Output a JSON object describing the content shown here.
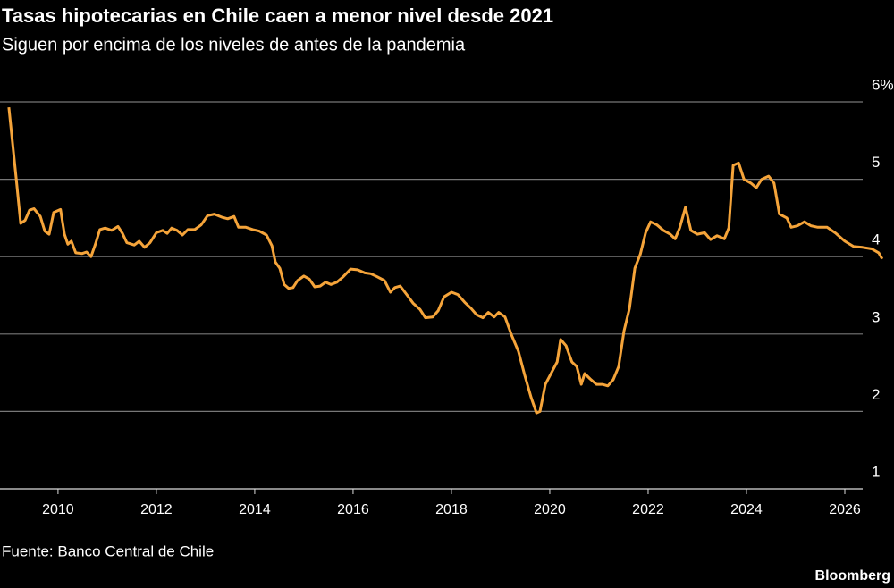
{
  "chart_data": {
    "type": "line",
    "title": "Tasas hipotecarias en Chile caen a menor nivel desde 2021",
    "subtitle": "Siguen por encima de los niveles de antes de la pandemia",
    "source": "Fuente: Banco Central de Chile",
    "brand": "Bloomberg",
    "color": "#f5a43a",
    "grid": true,
    "xlim": [
      2008.82,
      2027.0
    ],
    "xticks": [
      2010,
      2012,
      2014,
      2016,
      2018,
      2020,
      2022,
      2024,
      2026
    ],
    "ylim": [
      1,
      6
    ],
    "yticks": [
      1,
      2,
      3,
      4,
      5,
      {
        "value": 6,
        "label": "6%"
      }
    ],
    "x": [
      2009.0,
      2009.15,
      2009.24,
      2009.33,
      2009.42,
      2009.51,
      2009.64,
      2009.73,
      2009.82,
      2009.91,
      2010.05,
      2010.13,
      2010.2,
      2010.27,
      2010.36,
      2010.49,
      2010.58,
      2010.67,
      2010.76,
      2010.85,
      2010.96,
      2011.09,
      2011.22,
      2011.31,
      2011.4,
      2011.55,
      2011.65,
      2011.76,
      2011.87,
      2012.0,
      2012.13,
      2012.22,
      2012.31,
      2012.42,
      2012.53,
      2012.64,
      2012.78,
      2012.91,
      2013.04,
      2013.18,
      2013.33,
      2013.45,
      2013.58,
      2013.67,
      2013.82,
      2013.96,
      2014.09,
      2014.24,
      2014.35,
      2014.42,
      2014.51,
      2014.6,
      2014.69,
      2014.78,
      2014.87,
      2015.0,
      2015.11,
      2015.22,
      2015.33,
      2015.44,
      2015.55,
      2015.67,
      2015.8,
      2015.95,
      2016.09,
      2016.24,
      2016.36,
      2016.49,
      2016.64,
      2016.76,
      2016.85,
      2016.96,
      2017.09,
      2017.22,
      2017.36,
      2017.47,
      2017.62,
      2017.73,
      2017.85,
      2018.0,
      2018.13,
      2018.27,
      2018.4,
      2018.51,
      2018.64,
      2018.75,
      2018.87,
      2018.96,
      2019.09,
      2019.22,
      2019.36,
      2019.49,
      2019.62,
      2019.73,
      2019.8,
      2019.91,
      2020.05,
      2020.15,
      2020.22,
      2020.33,
      2020.45,
      2020.55,
      2020.64,
      2020.71,
      2020.82,
      2020.95,
      2021.07,
      2021.18,
      2021.29,
      2021.4,
      2021.51,
      2021.62,
      2021.73,
      2021.84,
      2021.95,
      2022.05,
      2022.18,
      2022.31,
      2022.45,
      2022.55,
      2022.64,
      2022.76,
      2022.87,
      2023.0,
      2023.15,
      2023.27,
      2023.4,
      2023.55,
      2023.64,
      2023.73,
      2023.84,
      2023.95,
      2024.09,
      2024.2,
      2024.31,
      2024.45,
      2024.56,
      2024.67,
      2024.82,
      2024.91,
      2025.04,
      2025.18,
      2025.31,
      2025.45,
      2025.64,
      2025.82,
      2026.0,
      2026.18,
      2026.36,
      2026.55,
      2026.69,
      2026.76
    ],
    "values": [
      5.93,
      5.0,
      4.43,
      4.47,
      4.6,
      4.62,
      4.52,
      4.33,
      4.29,
      4.57,
      4.61,
      4.29,
      4.16,
      4.2,
      4.05,
      4.04,
      4.06,
      4.0,
      4.16,
      4.35,
      4.37,
      4.34,
      4.39,
      4.3,
      4.18,
      4.15,
      4.2,
      4.12,
      4.18,
      4.31,
      4.34,
      4.3,
      4.37,
      4.34,
      4.28,
      4.35,
      4.35,
      4.41,
      4.53,
      4.55,
      4.51,
      4.49,
      4.52,
      4.38,
      4.38,
      4.35,
      4.33,
      4.28,
      4.14,
      3.93,
      3.85,
      3.64,
      3.59,
      3.6,
      3.69,
      3.75,
      3.71,
      3.61,
      3.62,
      3.67,
      3.64,
      3.67,
      3.74,
      3.84,
      3.83,
      3.79,
      3.78,
      3.74,
      3.69,
      3.54,
      3.6,
      3.62,
      3.51,
      3.4,
      3.32,
      3.21,
      3.22,
      3.3,
      3.48,
      3.54,
      3.51,
      3.41,
      3.33,
      3.25,
      3.21,
      3.28,
      3.22,
      3.28,
      3.22,
      2.99,
      2.78,
      2.47,
      2.18,
      1.98,
      2.0,
      2.35,
      2.52,
      2.64,
      2.93,
      2.85,
      2.64,
      2.58,
      2.35,
      2.49,
      2.42,
      2.35,
      2.35,
      2.33,
      2.41,
      2.58,
      3.04,
      3.33,
      3.85,
      4.03,
      4.31,
      4.45,
      4.41,
      4.34,
      4.29,
      4.23,
      4.37,
      4.64,
      4.34,
      4.29,
      4.31,
      4.22,
      4.27,
      4.23,
      4.37,
      5.18,
      5.21,
      5.0,
      4.95,
      4.89,
      5.0,
      5.04,
      4.95,
      4.55,
      4.5,
      4.38,
      4.4,
      4.45,
      4.4,
      4.38,
      4.38,
      4.3,
      4.2,
      4.13,
      4.12,
      4.1,
      4.05,
      3.97
    ]
  }
}
